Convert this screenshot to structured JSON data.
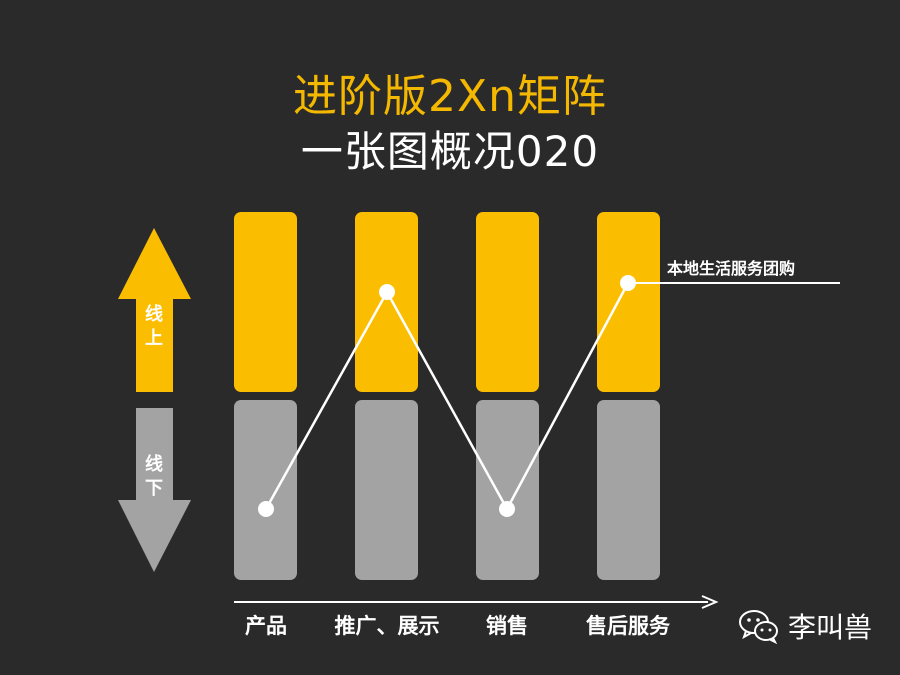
{
  "title": "进阶版2Xn矩阵",
  "subtitle": "一张图概况020",
  "online_label": "线上",
  "offline_label": "线下",
  "categories": [
    "产品",
    "推广、展示",
    "销售",
    "售后服务"
  ],
  "annotation": "本地生活服务团购",
  "watermark": "李叫兽",
  "colors": {
    "background": "#2a2a2a",
    "online": "#fbbd00",
    "offline": "#a3a3a3",
    "line": "#ffffff"
  },
  "path_levels": [
    "offline",
    "online",
    "offline",
    "online"
  ]
}
